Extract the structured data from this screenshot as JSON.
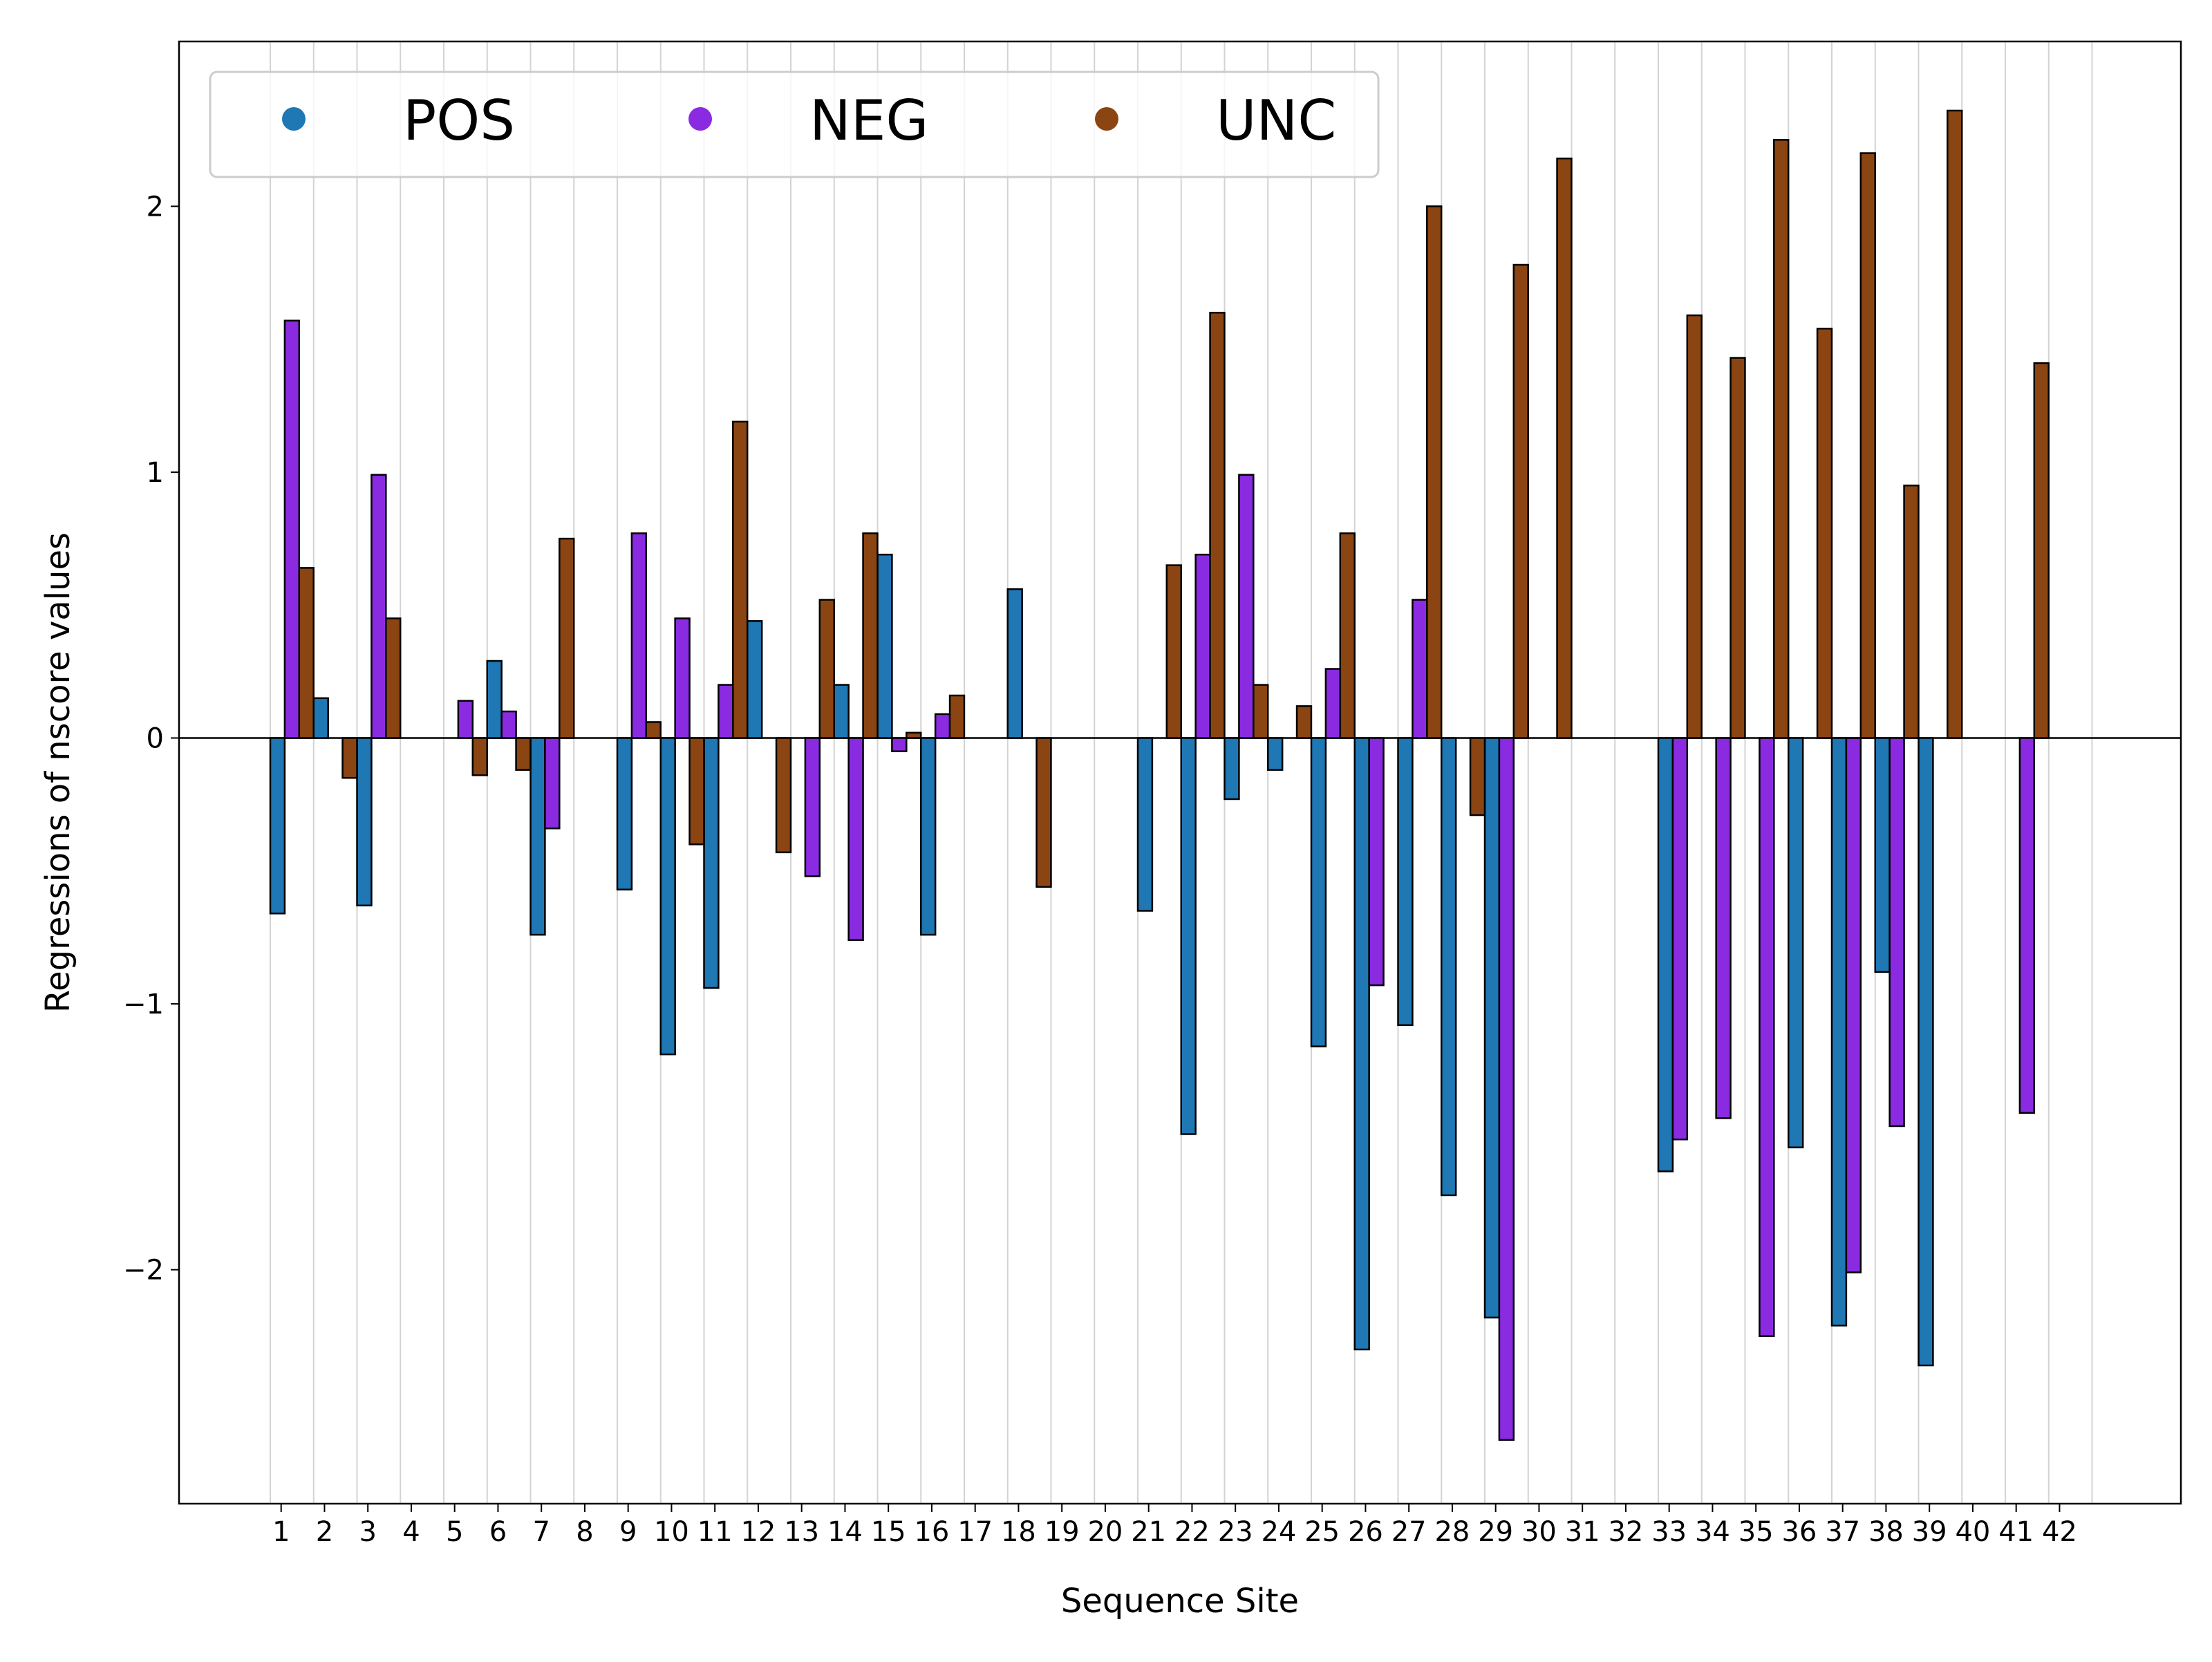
{
  "chart_data": {
    "type": "bar",
    "title": "",
    "xlabel": "Sequence Site",
    "ylabel": "Regressions of nscore values",
    "ylim": [
      -2.88,
      2.62
    ],
    "yticks": [
      -2,
      -1,
      0,
      1,
      2
    ],
    "ytick_labels": [
      "−2",
      "−1",
      "0",
      "1",
      "2"
    ],
    "categories": [
      "1",
      "2",
      "3",
      "4",
      "5",
      "6",
      "7",
      "8",
      "9",
      "10",
      "11",
      "12",
      "13",
      "14",
      "15",
      "16",
      "17",
      "18",
      "19",
      "20",
      "21",
      "22",
      "23",
      "24",
      "25",
      "26",
      "27",
      "28",
      "29",
      "30",
      "31",
      "32",
      "33",
      "34",
      "35",
      "36",
      "37",
      "38",
      "39",
      "40",
      "41",
      "42"
    ],
    "grid": "vertical",
    "legend_placement": "top-left",
    "series": [
      {
        "name": "POS",
        "color": "#1f77b4",
        "values": [
          -0.66,
          0.15,
          -0.63,
          null,
          null,
          0.29,
          -0.74,
          null,
          -0.57,
          -1.19,
          -0.94,
          0.44,
          null,
          0.2,
          0.69,
          -0.74,
          null,
          0.56,
          null,
          null,
          -0.65,
          -1.49,
          -0.23,
          -0.12,
          -1.16,
          -2.3,
          -1.08,
          -1.72,
          -2.18,
          null,
          null,
          null,
          -1.63,
          null,
          null,
          -1.54,
          -2.21,
          -0.88,
          -2.36,
          null,
          null,
          null
        ]
      },
      {
        "name": "NEG",
        "color": "#8a2be2",
        "values": [
          1.57,
          null,
          0.99,
          null,
          0.14,
          0.1,
          -0.34,
          null,
          0.77,
          0.45,
          0.2,
          null,
          -0.52,
          -0.76,
          -0.05,
          0.09,
          null,
          null,
          null,
          null,
          null,
          0.69,
          0.99,
          null,
          0.26,
          -0.93,
          0.52,
          null,
          -2.64,
          null,
          null,
          null,
          -1.51,
          -1.43,
          -2.25,
          null,
          -2.01,
          -1.46,
          null,
          null,
          -1.41,
          null
        ]
      },
      {
        "name": "UNC",
        "color": "#8b4513",
        "values": [
          0.64,
          -0.15,
          0.45,
          null,
          -0.14,
          -0.12,
          0.75,
          null,
          0.06,
          -0.4,
          1.19,
          -0.43,
          0.52,
          0.77,
          0.02,
          0.16,
          null,
          -0.56,
          null,
          null,
          0.65,
          1.6,
          0.2,
          0.12,
          0.77,
          null,
          2.0,
          -0.29,
          1.78,
          2.18,
          null,
          null,
          1.59,
          1.43,
          2.25,
          1.54,
          2.2,
          0.95,
          2.36,
          null,
          1.41,
          null
        ]
      }
    ]
  }
}
